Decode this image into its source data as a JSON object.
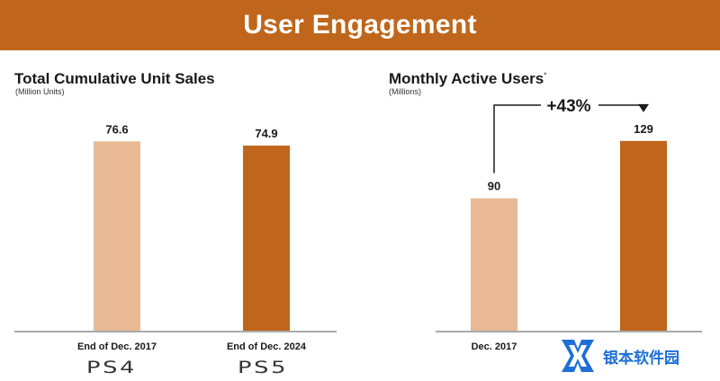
{
  "header": {
    "title": "User Engagement"
  },
  "chart_data": [
    {
      "type": "bar",
      "title": "Total Cumulative Unit Sales",
      "subtitle": "(Million Units)",
      "categories": [
        "End of Dec. 2017",
        "End of Dec. 2024"
      ],
      "values": [
        76.6,
        74.9
      ],
      "value_labels": [
        "76.6",
        "74.9"
      ],
      "bar_colors": [
        "#e8b994",
        "#c0661c"
      ],
      "ylim": [
        0,
        100
      ],
      "category_logos": [
        "PS4",
        "PS5"
      ]
    },
    {
      "type": "bar",
      "title": "Monthly Active Users",
      "title_footnote": "*",
      "subtitle": "(Millions)",
      "categories": [
        "Dec. 2017",
        ""
      ],
      "values": [
        90,
        129
      ],
      "value_labels": [
        "90",
        "129"
      ],
      "bar_colors": [
        "#e8b994",
        "#c0661c"
      ],
      "ylim": [
        0,
        168
      ],
      "annotation": {
        "text": "+43%",
        "from": 0,
        "to": 1
      }
    }
  ],
  "watermark": {
    "text": "银本软件园",
    "icon": "x-logo-icon",
    "color": "#1e6fd6"
  },
  "colors": {
    "accent": "#c0661c",
    "light_bar": "#e8b994"
  }
}
